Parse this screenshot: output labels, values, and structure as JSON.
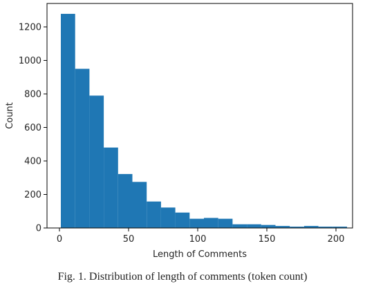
{
  "caption": "Fig. 1. Distribution of length of comments (token count)",
  "colors": {
    "bar": "#1f77b4",
    "axis": "#000000",
    "text": "#222222"
  },
  "chart_data": {
    "type": "bar",
    "title": "",
    "xlabel": "Length of Comments",
    "ylabel": "Count",
    "xlim": [
      -9,
      212
    ],
    "ylim": [
      0,
      1340
    ],
    "grid": false,
    "legend": "none",
    "xticks": [
      0,
      50,
      100,
      150,
      200
    ],
    "yticks": [
      0,
      200,
      400,
      600,
      800,
      1000,
      1200
    ],
    "bin_edges": [
      1,
      11.35,
      21.7,
      32.05,
      42.4,
      52.75,
      63.1,
      73.45,
      83.8,
      94.15,
      104.5,
      114.85,
      125.2,
      135.55,
      145.9,
      156.25,
      166.6,
      176.95,
      187.3,
      197.65,
      208
    ],
    "values": [
      1278,
      950,
      790,
      480,
      322,
      275,
      158,
      122,
      92,
      55,
      60,
      55,
      22,
      22,
      18,
      12,
      8,
      12,
      8,
      8
    ]
  }
}
